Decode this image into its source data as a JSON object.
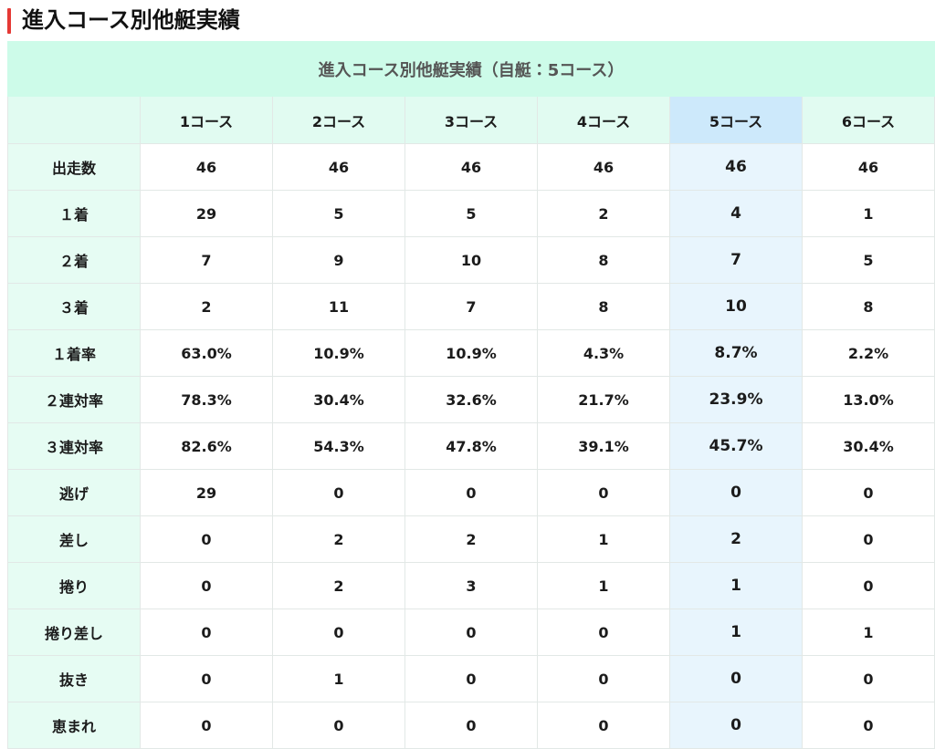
{
  "header": {
    "title": "進入コース別他艇実績"
  },
  "table": {
    "caption": "進入コース別他艇実績（自艇：5コース）",
    "columns": [
      "1コース",
      "2コース",
      "3コース",
      "4コース",
      "5コース",
      "6コース"
    ],
    "rows": [
      {
        "label": "出走数",
        "values": [
          46,
          46,
          46,
          46,
          46,
          46
        ]
      },
      {
        "label": "１着",
        "values": [
          29,
          5,
          5,
          2,
          4,
          1
        ]
      },
      {
        "label": "２着",
        "values": [
          7,
          9,
          10,
          8,
          7,
          5
        ]
      },
      {
        "label": "３着",
        "values": [
          2,
          11,
          7,
          8,
          10,
          8
        ]
      },
      {
        "label": "１着率",
        "values": [
          "63.0%",
          "10.9%",
          "10.9%",
          "4.3%",
          "8.7%",
          "2.2%"
        ]
      },
      {
        "label": "２連対率",
        "values": [
          "78.3%",
          "30.4%",
          "32.6%",
          "21.7%",
          "23.9%",
          "13.0%"
        ]
      },
      {
        "label": "３連対率",
        "values": [
          "82.6%",
          "54.3%",
          "47.8%",
          "39.1%",
          "45.7%",
          "30.4%"
        ]
      },
      {
        "label": "逃げ",
        "values": [
          29,
          0,
          0,
          0,
          0,
          0
        ]
      },
      {
        "label": "差し",
        "values": [
          0,
          2,
          2,
          1,
          2,
          0
        ]
      },
      {
        "label": "捲り",
        "values": [
          0,
          2,
          3,
          1,
          1,
          0
        ]
      },
      {
        "label": "捲り差し",
        "values": [
          0,
          0,
          0,
          0,
          1,
          1
        ]
      },
      {
        "label": "抜き",
        "values": [
          0,
          1,
          0,
          0,
          0,
          0
        ]
      },
      {
        "label": "恵まれ",
        "values": [
          0,
          0,
          0,
          0,
          0,
          0
        ]
      }
    ]
  }
}
